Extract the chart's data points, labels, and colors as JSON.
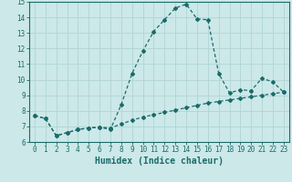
{
  "title": "",
  "xlabel": "Humidex (Indice chaleur)",
  "bg_color": "#cce8e8",
  "grid_color": "#b0d4d4",
  "line_color": "#1a6b6b",
  "xlim": [
    -0.5,
    23.5
  ],
  "ylim": [
    6,
    15
  ],
  "xticks": [
    0,
    1,
    2,
    3,
    4,
    5,
    6,
    7,
    8,
    9,
    10,
    11,
    12,
    13,
    14,
    15,
    16,
    17,
    18,
    19,
    20,
    21,
    22,
    23
  ],
  "yticks": [
    6,
    7,
    8,
    9,
    10,
    11,
    12,
    13,
    14,
    15
  ],
  "line1_x": [
    0,
    1,
    2,
    3,
    4,
    5,
    6,
    7,
    8,
    9,
    10,
    11,
    12,
    13,
    14,
    15,
    16,
    17,
    18,
    19,
    20,
    21,
    22,
    23
  ],
  "line1_y": [
    7.7,
    7.5,
    6.4,
    6.6,
    6.8,
    6.9,
    6.95,
    6.8,
    8.4,
    10.4,
    11.85,
    13.1,
    13.85,
    14.6,
    14.85,
    13.9,
    13.85,
    10.4,
    9.15,
    9.35,
    9.3,
    10.1,
    9.85,
    9.2
  ],
  "line2_x": [
    0,
    1,
    2,
    3,
    4,
    5,
    6,
    7,
    8,
    9,
    10,
    11,
    12,
    13,
    14,
    15,
    16,
    17,
    18,
    19,
    20,
    21,
    22,
    23
  ],
  "line2_y": [
    7.7,
    7.5,
    6.4,
    6.6,
    6.8,
    6.9,
    6.95,
    6.9,
    7.15,
    7.4,
    7.6,
    7.75,
    7.9,
    8.05,
    8.2,
    8.35,
    8.5,
    8.6,
    8.7,
    8.8,
    8.9,
    9.0,
    9.1,
    9.2
  ],
  "tick_fontsize": 5.5,
  "xlabel_fontsize": 7.0
}
